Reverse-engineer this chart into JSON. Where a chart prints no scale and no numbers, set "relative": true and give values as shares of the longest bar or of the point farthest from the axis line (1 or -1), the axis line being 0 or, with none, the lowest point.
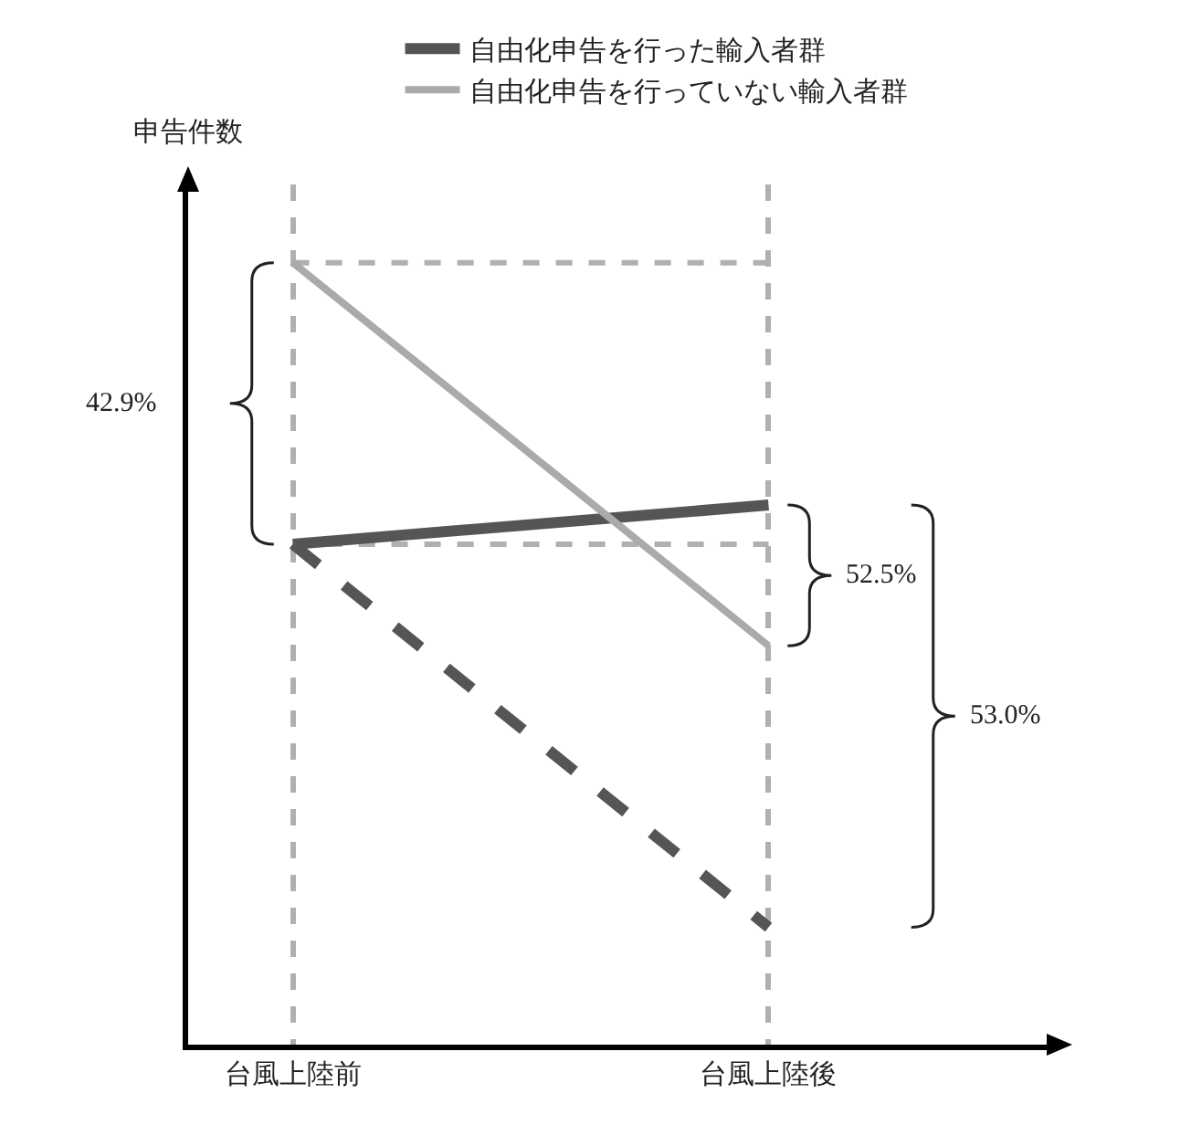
{
  "chart_data": {
    "type": "line",
    "relative": true,
    "ylabel": "申告件数",
    "categories": [
      "台風上陸前",
      "台風上陸後"
    ],
    "series": [
      {
        "name": "自由化申告を行った輸入者群",
        "color": "#555555",
        "values": [
          0.64,
          0.69
        ]
      },
      {
        "name": "自由化申告を行っていない輸入者群",
        "color": "#aaaaaa",
        "values": [
          1,
          0.51
        ]
      },
      {
        "color": "#555555",
        "values": [
          0.64,
          0.15
        ],
        "line_style": "dashed"
      }
    ],
    "ref_lines": [
      {
        "axis": "y",
        "value": 1,
        "color": "#b0b0b0",
        "line_style": "dashed"
      },
      {
        "axis": "y",
        "value": 0.64,
        "color": "#b0b0b0",
        "line_style": "dashed"
      }
    ],
    "annotations": [
      "42.9%",
      "52.5%",
      "53.0%"
    ],
    "legend": "top",
    "marker": "none",
    "grid": "x"
  }
}
